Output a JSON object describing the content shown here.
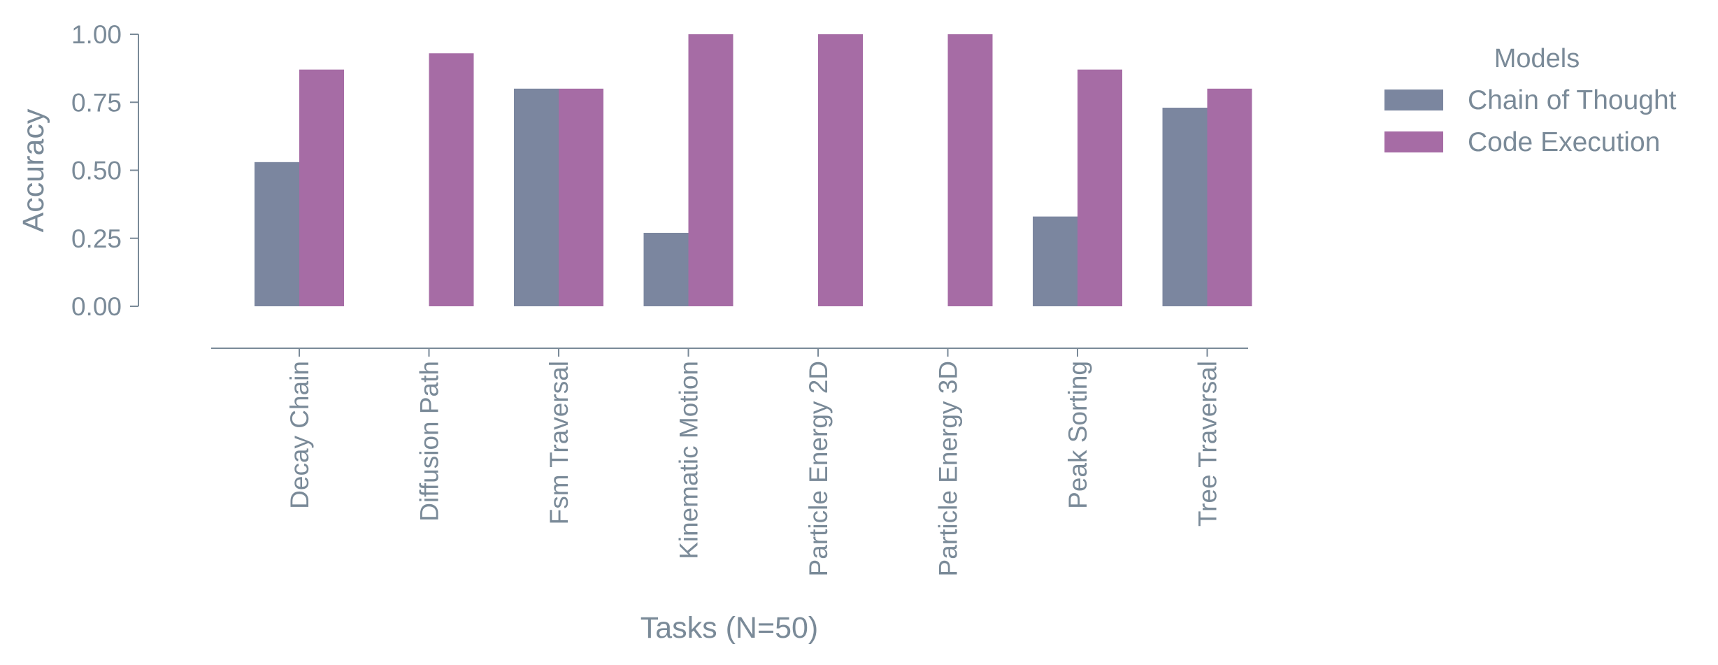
{
  "chart_data": {
    "type": "bar",
    "title": "",
    "xlabel": "Tasks (N=50)",
    "ylabel": "Accuracy",
    "ylim": [
      0,
      1
    ],
    "yticks": [
      "0.00",
      "0.25",
      "0.50",
      "0.75",
      "1.00"
    ],
    "grid": false,
    "legend": {
      "title": "Models",
      "placement": "top-right, outside plot"
    },
    "categories": [
      "Decay Chain",
      "Diffusion Path",
      "Fsm Traversal",
      "Kinematic Motion",
      "Particle Energy 2D",
      "Particle Energy 3D",
      "Peak Sorting",
      "Tree Traversal"
    ],
    "series": [
      {
        "name": "Chain of Thought",
        "color": "#7b869f",
        "values": [
          0.53,
          0.0,
          0.8,
          0.27,
          0.0,
          0.0,
          0.33,
          0.73
        ]
      },
      {
        "name": "Code Execution",
        "color": "#a66ca5",
        "values": [
          0.87,
          0.93,
          0.8,
          1.0,
          1.0,
          1.0,
          0.87,
          0.8
        ]
      }
    ],
    "colors": {
      "axis": "#7a8a98",
      "background": "#ffffff"
    }
  }
}
